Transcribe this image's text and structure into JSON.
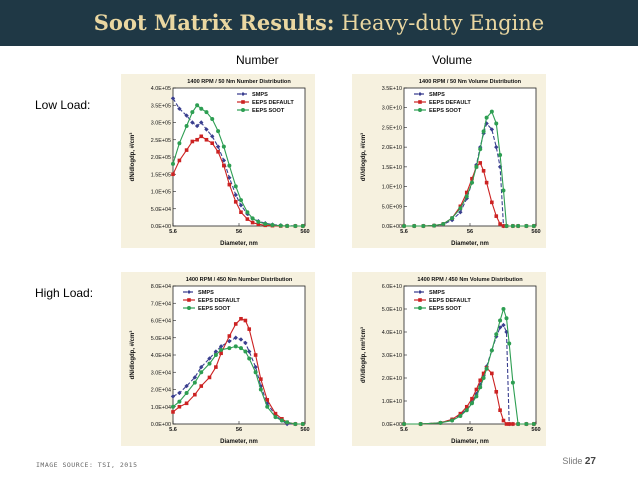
{
  "header": {
    "title_bold": "Soot Matrix Results:",
    "title_rest": "Heavy-duty Engine"
  },
  "columns": [
    "Number",
    "Volume"
  ],
  "rows": [
    "Low Load:",
    "High Load:"
  ],
  "footer": {
    "source": "IMAGE SOURCE: TSI, 2015",
    "slide_label": "Slide",
    "slide_number": "27"
  },
  "colors": {
    "smps": "#3a3f8f",
    "default": "#cc2222",
    "soot": "#2d9e52"
  },
  "chart_data": [
    {
      "id": "low-number",
      "type": "line",
      "title": "1400 RPM / 50 Nm Number Distribution",
      "xlabel": "Diameter, nm",
      "ylabel": "dN/dlogdp, #/cm³",
      "xscale": "log",
      "xlim": [
        5.6,
        560
      ],
      "xticks": [
        "5.6",
        "56",
        "560"
      ],
      "ylim": [
        0,
        400000
      ],
      "yticks": [
        "0.0E+00",
        "5.0E+04",
        "1.0E+05",
        "1.5E+05",
        "2.0E+05",
        "2.5E+05",
        "3.0E+05",
        "3.5E+05",
        "4.0E+05"
      ],
      "legend": [
        "SMPS",
        "EEPS DEFAULT",
        "EEPS SOOT"
      ],
      "legend_position": "top-right",
      "x": [
        5.6,
        7,
        9,
        11,
        13,
        15,
        18,
        22,
        27,
        33,
        40,
        50,
        60,
        75,
        90,
        110,
        140,
        180,
        240,
        300,
        400,
        520
      ],
      "series": [
        {
          "name": "SMPS",
          "values": [
            370000,
            340000,
            320000,
            300000,
            290000,
            300000,
            280000,
            260000,
            230000,
            190000,
            140000,
            90000,
            60000,
            35000,
            22000,
            14000,
            8000,
            4000,
            2000,
            1000,
            0,
            0
          ]
        },
        {
          "name": "EEPS DEFAULT",
          "values": [
            150000,
            190000,
            220000,
            245000,
            250000,
            260000,
            250000,
            240000,
            215000,
            175000,
            120000,
            70000,
            40000,
            20000,
            10000,
            5000,
            2000,
            1000,
            0,
            0,
            0,
            0
          ]
        },
        {
          "name": "EEPS SOOT",
          "values": [
            180000,
            240000,
            290000,
            330000,
            350000,
            340000,
            330000,
            310000,
            275000,
            230000,
            175000,
            115000,
            75000,
            40000,
            22000,
            12000,
            6000,
            3000,
            1000,
            0,
            0,
            0
          ]
        }
      ]
    },
    {
      "id": "low-volume",
      "type": "line",
      "title": "1400 RPM / 50 Nm Volume Distribution",
      "xlabel": "Diameter, nm",
      "ylabel": "dV/dlogdp, #/cm³",
      "xscale": "log",
      "xlim": [
        5.6,
        560
      ],
      "xticks": [
        "5.6",
        "56",
        "560"
      ],
      "ylim": [
        0,
        35000000000
      ],
      "yticks": [
        "0.0E+00",
        "5.0E+09",
        "1.0E+10",
        "1.5E+10",
        "2.0E+10",
        "2.5E+10",
        "3.0E+10",
        "3.5E+10"
      ],
      "legend": [
        "SMPS",
        "EEPS DEFAULT",
        "EEPS SOOT"
      ],
      "legend_position": "top-left",
      "x": [
        5.6,
        8,
        11,
        16,
        22,
        30,
        40,
        50,
        60,
        70,
        80,
        90,
        100,
        120,
        140,
        160,
        180,
        200,
        250,
        300,
        400,
        520
      ],
      "series": [
        {
          "name": "SMPS",
          "values": [
            0,
            0,
            0,
            100000000,
            400000000,
            1500000000,
            3500000000,
            7000000000,
            11000000000,
            15500000000,
            20000000000,
            23500000000,
            26000000000,
            24500000000,
            20000000000,
            15000000000,
            0,
            0,
            0,
            0,
            0,
            0
          ]
        },
        {
          "name": "EEPS DEFAULT",
          "values": [
            0,
            0,
            0,
            100000000,
            500000000,
            2000000000,
            5000000000,
            8500000000,
            12000000000,
            15000000000,
            16000000000,
            14000000000,
            11000000000,
            6000000000,
            2500000000,
            500000000,
            0,
            0,
            0,
            0,
            0,
            0
          ]
        },
        {
          "name": "EEPS SOOT",
          "values": [
            0,
            0,
            0,
            100000000,
            500000000,
            2000000000,
            4500000000,
            7500000000,
            11000000000,
            15000000000,
            19500000000,
            24000000000,
            27500000000,
            29000000000,
            26000000000,
            18000000000,
            9000000000,
            0,
            0,
            0,
            0,
            0
          ]
        }
      ]
    },
    {
      "id": "high-number",
      "type": "line",
      "title": "1400 RPM / 450 Nm Number Distribution",
      "xlabel": "Diameter, nm",
      "ylabel": "dN/dlogdp, #/cm³",
      "xscale": "log",
      "xlim": [
        5.6,
        560
      ],
      "xticks": [
        "5.6",
        "56",
        "560"
      ],
      "ylim": [
        0,
        80000
      ],
      "yticks": [
        "0.0E+00",
        "1.0E+04",
        "2.0E+04",
        "3.0E+04",
        "4.0E+04",
        "5.0E+04",
        "6.0E+04",
        "7.0E+04",
        "8.0E+04"
      ],
      "legend": [
        "SMPS",
        "EEPS DEFAULT",
        "EEPS SOOT"
      ],
      "legend_position": "top-left",
      "x": [
        5.6,
        7,
        9,
        12,
        15,
        20,
        25,
        30,
        40,
        50,
        60,
        70,
        80,
        100,
        120,
        150,
        200,
        250,
        300,
        400,
        520
      ],
      "series": [
        {
          "name": "SMPS",
          "values": [
            16000,
            18000,
            22000,
            27000,
            33000,
            38000,
            42000,
            45000,
            48000,
            50000,
            49000,
            47000,
            42000,
            33000,
            22000,
            12000,
            5000,
            2000,
            0,
            0,
            0
          ]
        },
        {
          "name": "EEPS DEFAULT",
          "values": [
            7000,
            10000,
            12000,
            17000,
            22000,
            27000,
            33000,
            41000,
            51000,
            58000,
            61000,
            60000,
            55000,
            40000,
            26000,
            14000,
            6000,
            3000,
            1000,
            0,
            0
          ]
        },
        {
          "name": "EEPS SOOT",
          "values": [
            10000,
            13000,
            18000,
            24000,
            30000,
            35000,
            40000,
            43000,
            44000,
            45000,
            44000,
            42000,
            38000,
            30000,
            20000,
            10000,
            4000,
            2000,
            1000,
            0,
            0
          ]
        }
      ]
    },
    {
      "id": "high-volume",
      "type": "line",
      "title": "1400 RPM / 450 Nm Volume Distribution",
      "xlabel": "Diameter, nm",
      "ylabel": "dV/dlogdp, nm³/cm³",
      "xscale": "log",
      "xlim": [
        5.6,
        560
      ],
      "xticks": [
        "5.6",
        "56",
        "560"
      ],
      "ylim": [
        0,
        60000000000
      ],
      "yticks": [
        "0.0E+00",
        "1.0E+10",
        "2.0E+10",
        "3.0E+10",
        "4.0E+10",
        "5.0E+10",
        "6.0E+10"
      ],
      "legend": [
        "SMPS",
        "EEPS DEFAULT",
        "EEPS SOOT"
      ],
      "legend_position": "top-left",
      "x": [
        5.6,
        10,
        20,
        30,
        40,
        50,
        60,
        70,
        80,
        90,
        100,
        120,
        140,
        160,
        180,
        200,
        220,
        250,
        300,
        400,
        520
      ],
      "series": [
        {
          "name": "SMPS",
          "values": [
            0,
            0,
            500000000,
            2000000000,
            4000000000,
            6500000000,
            9500000000,
            13000000000,
            17000000000,
            21000000000,
            25000000000,
            32000000000,
            38000000000,
            42000000000,
            43000000000,
            40000000000,
            0,
            0,
            0,
            0,
            0
          ]
        },
        {
          "name": "EEPS DEFAULT",
          "values": [
            0,
            0,
            500000000,
            2000000000,
            4500000000,
            7500000000,
            11000000000,
            15000000000,
            19000000000,
            22000000000,
            24500000000,
            22000000000,
            14000000000,
            6000000000,
            1500000000,
            0,
            0,
            0,
            0,
            0,
            0
          ]
        },
        {
          "name": "EEPS SOOT",
          "values": [
            0,
            0,
            500000000,
            1500000000,
            3500000000,
            6000000000,
            9000000000,
            12000000000,
            16000000000,
            20000000000,
            24000000000,
            32000000000,
            39000000000,
            45000000000,
            50000000000,
            46000000000,
            35000000000,
            18000000000,
            0,
            0,
            0
          ]
        }
      ]
    }
  ]
}
